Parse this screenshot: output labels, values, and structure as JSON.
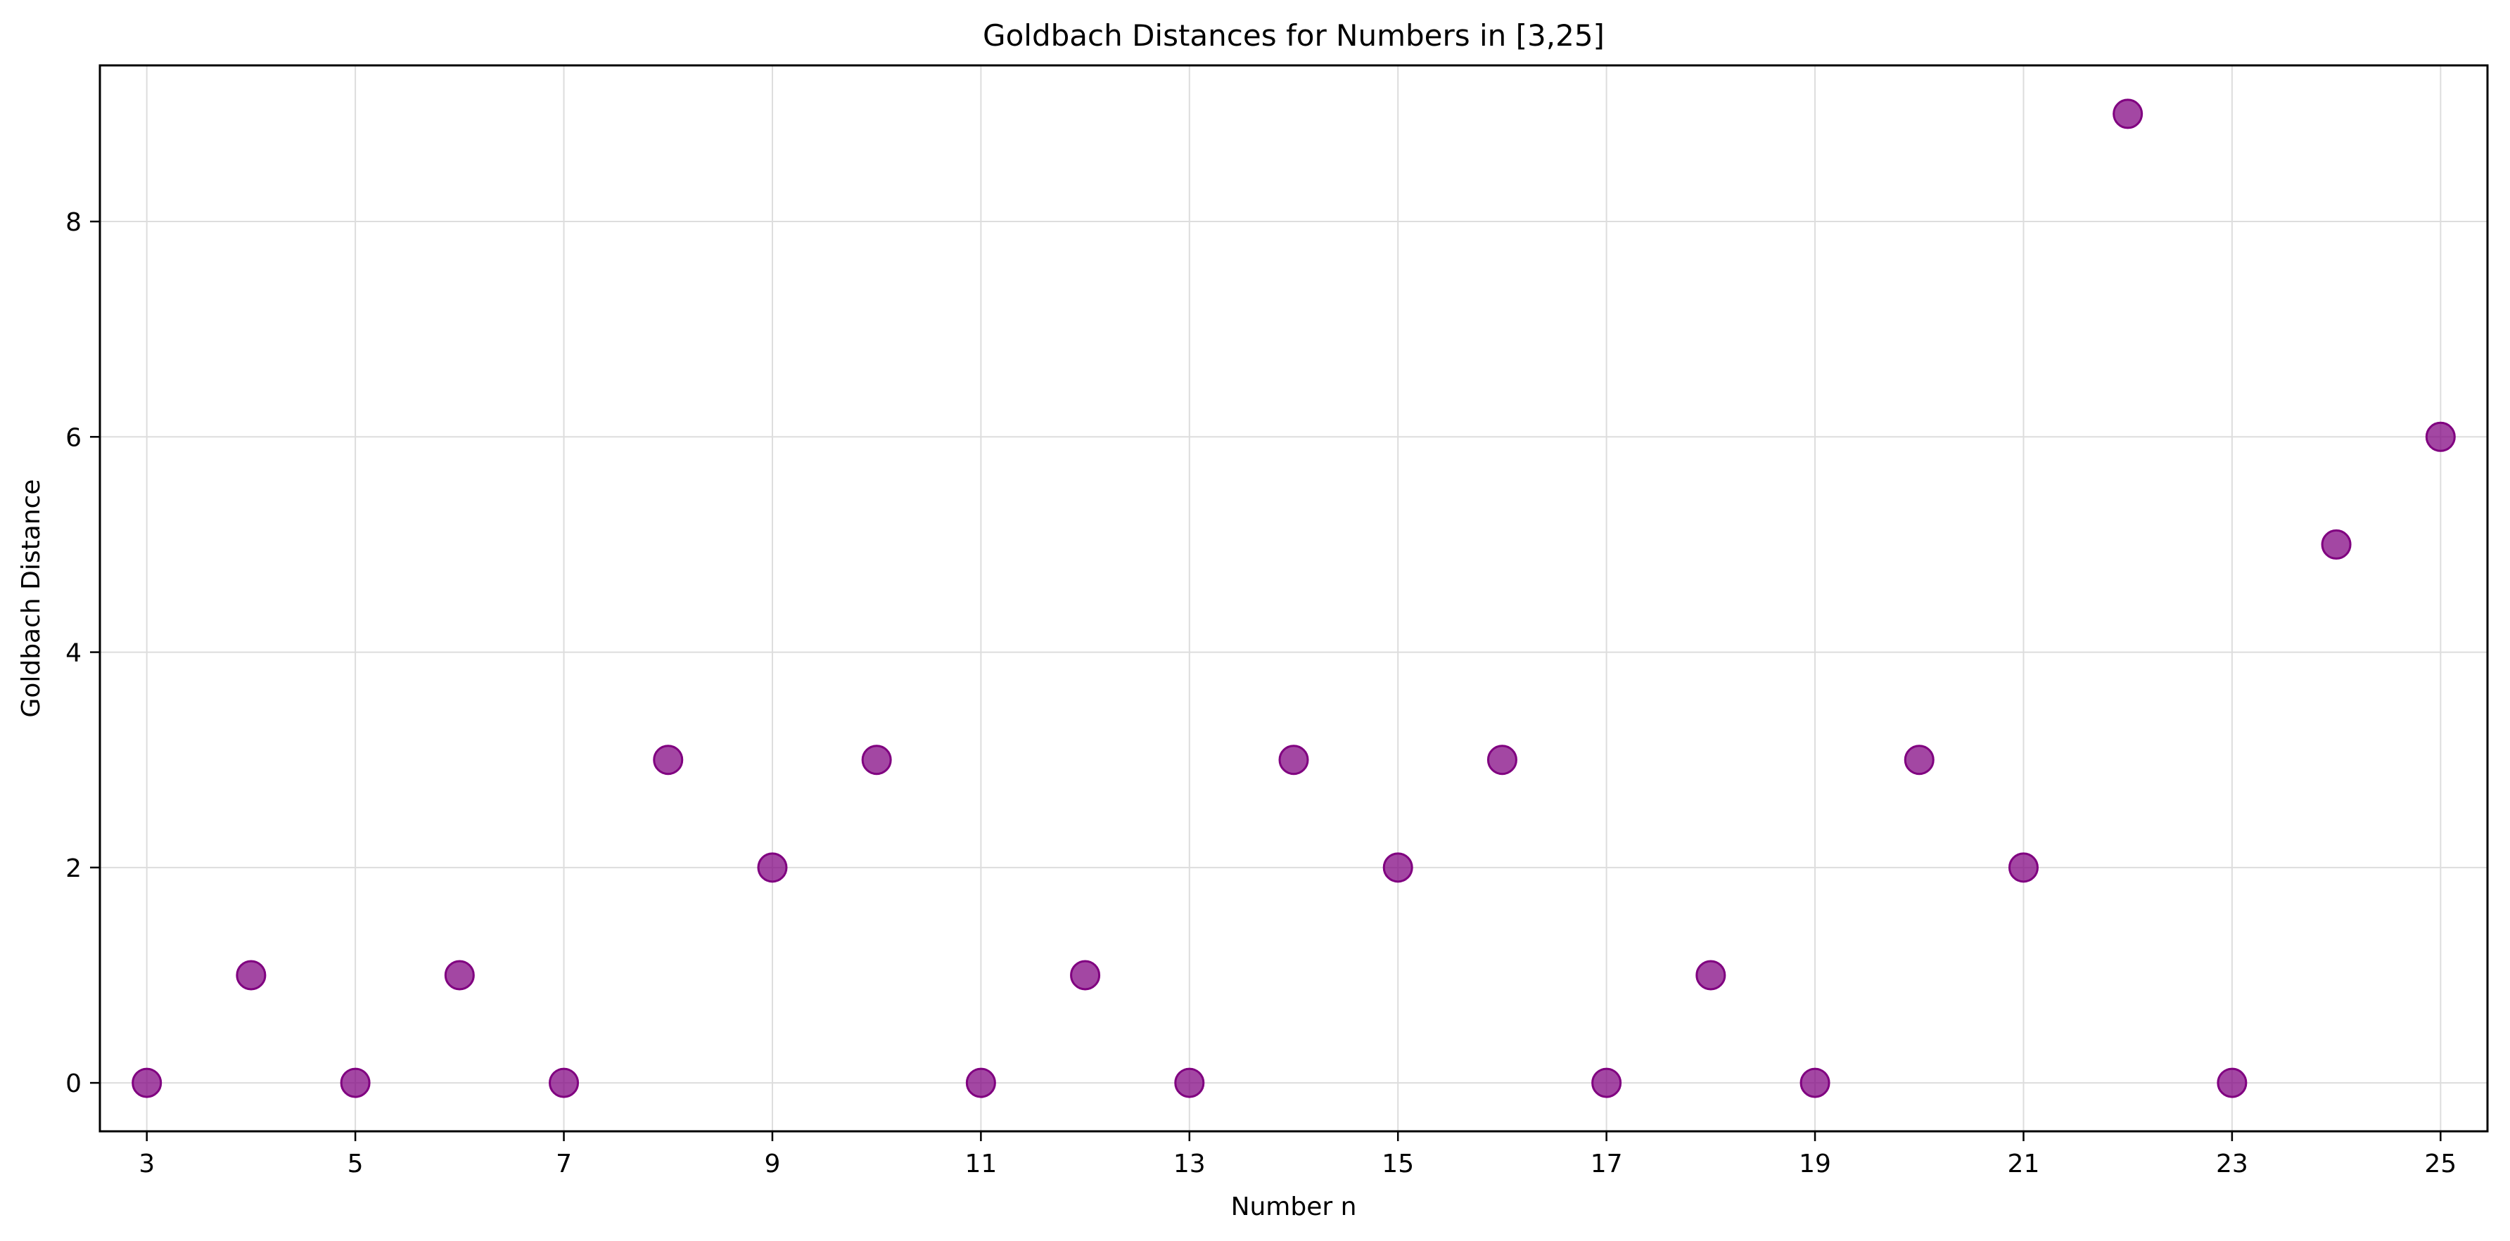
{
  "chart_data": {
    "type": "scatter",
    "title": "Goldbach Distances for Numbers in [3,25]",
    "xlabel": "Number n",
    "ylabel": "Goldbach Distance",
    "x": [
      3,
      4,
      5,
      6,
      7,
      8,
      9,
      10,
      11,
      12,
      13,
      14,
      15,
      16,
      17,
      18,
      19,
      20,
      21,
      22,
      23,
      24,
      25
    ],
    "y": [
      0,
      1,
      0,
      1,
      0,
      3,
      2,
      3,
      0,
      1,
      0,
      3,
      2,
      3,
      0,
      1,
      0,
      3,
      2,
      9,
      0,
      5,
      6
    ],
    "xlim": [
      2.55,
      25.45
    ],
    "ylim": [
      -0.45,
      9.45
    ],
    "xticks": [
      3,
      5,
      7,
      9,
      11,
      13,
      15,
      17,
      19,
      21,
      23,
      25
    ],
    "yticks": [
      0,
      2,
      4,
      6,
      8
    ],
    "xtick_labels": [
      "3",
      "5",
      "7",
      "9",
      "11",
      "13",
      "15",
      "17",
      "19",
      "21",
      "23",
      "25"
    ],
    "ytick_labels": [
      "0",
      "2",
      "4",
      "6",
      "8"
    ],
    "grid": true,
    "legend": null,
    "colors": {
      "marker": "#800080",
      "grid": "#dddddd",
      "axis": "#000000",
      "background": "#ffffff"
    }
  }
}
